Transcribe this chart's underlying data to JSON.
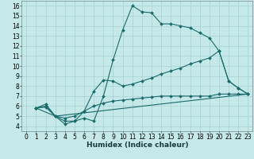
{
  "xlabel": "Humidex (Indice chaleur)",
  "bg_color": "#c5e8e8",
  "line_color": "#1a6b6b",
  "marker": "D",
  "markersize": 2.0,
  "linewidth": 0.8,
  "xlim": [
    -0.5,
    23.5
  ],
  "ylim": [
    3.5,
    16.5
  ],
  "xticks": [
    0,
    1,
    2,
    3,
    4,
    5,
    6,
    7,
    8,
    9,
    10,
    11,
    12,
    13,
    14,
    15,
    16,
    17,
    18,
    19,
    20,
    21,
    22,
    23
  ],
  "yticks": [
    4,
    5,
    6,
    7,
    8,
    9,
    10,
    11,
    12,
    13,
    14,
    15,
    16
  ],
  "series": [
    {
      "x": [
        1,
        2,
        3,
        4,
        5,
        6,
        7,
        8,
        9,
        10,
        11,
        12,
        13,
        14,
        15,
        16,
        17,
        18,
        19,
        20,
        21,
        22,
        23
      ],
      "y": [
        5.8,
        6.2,
        5.0,
        4.5,
        4.5,
        4.8,
        4.5,
        7.0,
        10.6,
        13.6,
        16.0,
        15.4,
        15.3,
        14.2,
        14.2,
        14.0,
        13.8,
        13.3,
        12.8,
        11.5,
        8.5,
        7.8,
        7.2
      ]
    },
    {
      "x": [
        1,
        2,
        3,
        4,
        5,
        6,
        7,
        8,
        9,
        10,
        11,
        12,
        13,
        14,
        15,
        16,
        17,
        18,
        19,
        20,
        21,
        22,
        23
      ],
      "y": [
        5.8,
        6.0,
        5.0,
        4.2,
        4.5,
        5.5,
        7.5,
        8.6,
        8.5,
        8.0,
        8.2,
        8.5,
        8.8,
        9.2,
        9.5,
        9.8,
        10.2,
        10.5,
        10.8,
        11.5,
        8.5,
        7.8,
        7.2
      ]
    },
    {
      "x": [
        1,
        3,
        23
      ],
      "y": [
        5.8,
        5.0,
        7.2
      ]
    },
    {
      "x": [
        1,
        2,
        3,
        4,
        5,
        6,
        7,
        8,
        9,
        10,
        11,
        12,
        13,
        14,
        15,
        16,
        17,
        18,
        19,
        20,
        21,
        22,
        23
      ],
      "y": [
        5.8,
        5.9,
        5.0,
        4.8,
        5.0,
        5.5,
        6.0,
        6.3,
        6.5,
        6.6,
        6.7,
        6.8,
        6.9,
        7.0,
        7.0,
        7.0,
        7.0,
        7.0,
        7.0,
        7.2,
        7.2,
        7.2,
        7.2
      ]
    }
  ],
  "grid_color": "#a8d0d0",
  "tick_fontsize": 5.5,
  "xlabel_fontsize": 6.5,
  "title_fontsize": 6.0
}
